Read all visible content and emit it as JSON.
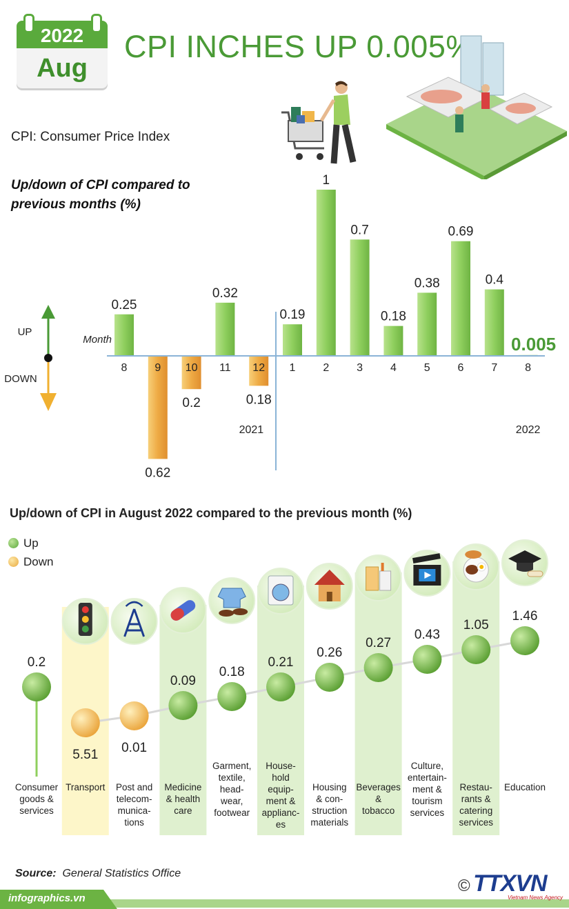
{
  "header": {
    "year": "2022",
    "month": "Aug",
    "title": "CPI INCHES UP 0.005%"
  },
  "definition": "CPI: Consumer Price Index",
  "colors": {
    "green": "#5aaa3c",
    "title_green": "#4a9a36",
    "bar_up": "#8fcf5e",
    "bar_down": "#eeaa44",
    "highlight_band_green": "#dff0cf",
    "highlight_band_yellow": "#fdf6c9"
  },
  "axis_labels": {
    "up": "UP",
    "down": "DOWN",
    "month": "Month"
  },
  "chart_data": [
    {
      "type": "bar",
      "title": "Up/down of CPI compared to previous months (%)",
      "xlabel": "Month",
      "ylabel": "",
      "categories": [
        "8",
        "9",
        "10",
        "11",
        "12",
        "1",
        "2",
        "3",
        "4",
        "5",
        "6",
        "7",
        "8"
      ],
      "values": [
        0.25,
        -0.62,
        -0.2,
        0.32,
        -0.18,
        0.19,
        1,
        0.7,
        0.18,
        0.38,
        0.69,
        0.4,
        0.005
      ],
      "value_labels": [
        "0.25",
        "0.62",
        "0.2",
        "0.32",
        "0.18",
        "0.19",
        "1",
        "0.7",
        "0.18",
        "0.38",
        "0.69",
        "0.4",
        "0.005"
      ],
      "year_labels": [
        {
          "label": "2021",
          "category_index": 3
        },
        {
          "label": "2022",
          "category_index": 12
        }
      ],
      "ylim": [
        -0.7,
        1.05
      ]
    },
    {
      "type": "scatter",
      "title": "Up/down of CPI in August 2022 compared to the previous month (%)",
      "legend": [
        {
          "name": "Up",
          "color": "#6cb343"
        },
        {
          "name": "Down",
          "color": "#f0b64a"
        }
      ],
      "categories": [
        "Consumer goods & services",
        "Transport",
        "Post and telecom-munica-tions",
        "Medicine & health care",
        "Garment, textile, head-wear, footwear",
        "House-hold equip-ment & applianc-es",
        "Housing & con-struction materials",
        "Beverages & tobacco",
        "Culture, entertain-ment & tourism services",
        "Restau-rants & catering services",
        "Education"
      ],
      "category_lines": [
        [
          "Consumer",
          "goods &",
          "services"
        ],
        [
          "Transport"
        ],
        [
          "Post and",
          "telecom-",
          "munica-",
          "tions"
        ],
        [
          "Medicine",
          "& health",
          "care"
        ],
        [
          "Garment,",
          "textile,",
          "head-",
          "wear,",
          "footwear"
        ],
        [
          "House-",
          "hold",
          "equip-",
          "ment &",
          "applianc-",
          "es"
        ],
        [
          "Housing",
          "& con-",
          "struction",
          "materials"
        ],
        [
          "Beverages",
          "&",
          "tobacco"
        ],
        [
          "Culture,",
          "entertain-",
          "ment &",
          "tourism",
          "services"
        ],
        [
          "Restau-",
          "rants &",
          "catering",
          "services"
        ],
        [
          "Education"
        ]
      ],
      "values": [
        0.2,
        -5.51,
        -0.01,
        0.09,
        0.18,
        0.21,
        0.26,
        0.27,
        0.43,
        1.05,
        1.46
      ],
      "value_labels": [
        "0.2",
        "5.51",
        "0.01",
        "0.09",
        "0.18",
        "0.21",
        "0.26",
        "0.27",
        "0.43",
        "1.05",
        "1.46"
      ],
      "direction": [
        "up",
        "down",
        "down",
        "up",
        "up",
        "up",
        "up",
        "up",
        "up",
        "up",
        "up"
      ],
      "icons": [
        "",
        "traffic-light-icon",
        "antenna-tower-icon",
        "pill-capsule-icon",
        "shirt-shoes-icon",
        "washing-machine-icon",
        "house-icon",
        "drinks-icon",
        "film-clapper-icon",
        "food-plate-icon",
        "graduation-cap-icon"
      ],
      "band_colors": [
        "none",
        "yellow",
        "none",
        "green",
        "none",
        "green",
        "none",
        "green",
        "none",
        "green",
        "none"
      ]
    }
  ],
  "legend": {
    "up": "Up",
    "down": "Down"
  },
  "footer": {
    "source_label": "Source:",
    "source_value": "General Statistics Office",
    "site": "infographics.vn",
    "copyright": "©",
    "agency_logo": "TTXVN",
    "agency_sub": "Vietnam News Agency"
  }
}
